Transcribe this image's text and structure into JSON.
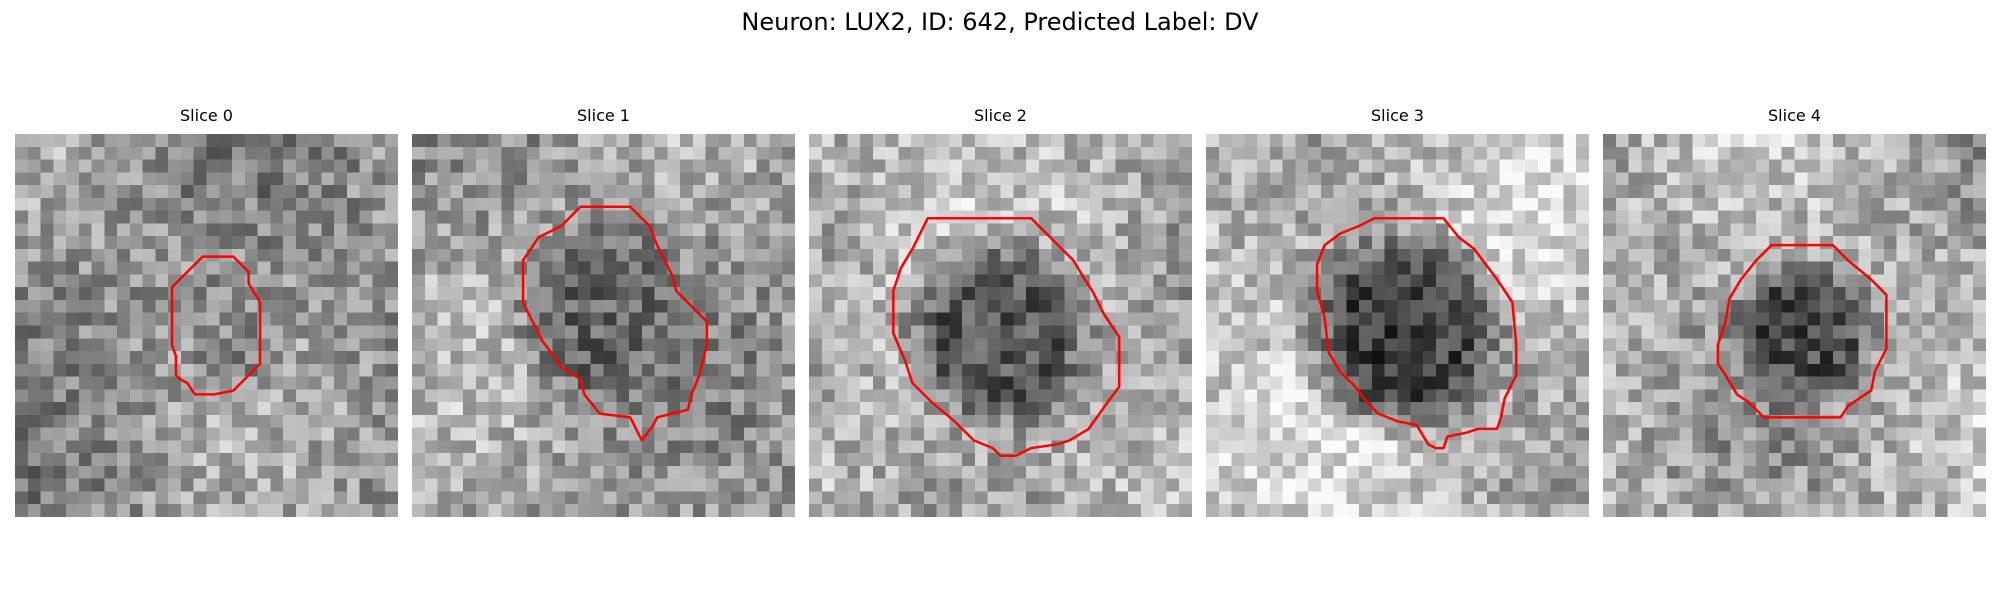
{
  "figure": {
    "title": "Neuron: LUX2, ID: 642, Predicted Label: DV",
    "outline_color": "#ff0000"
  },
  "panels": [
    {
      "title": "Slice 0"
    },
    {
      "title": "Slice 1"
    },
    {
      "title": "Slice 2"
    },
    {
      "title": "Slice 3"
    },
    {
      "title": "Slice 4"
    }
  ]
}
